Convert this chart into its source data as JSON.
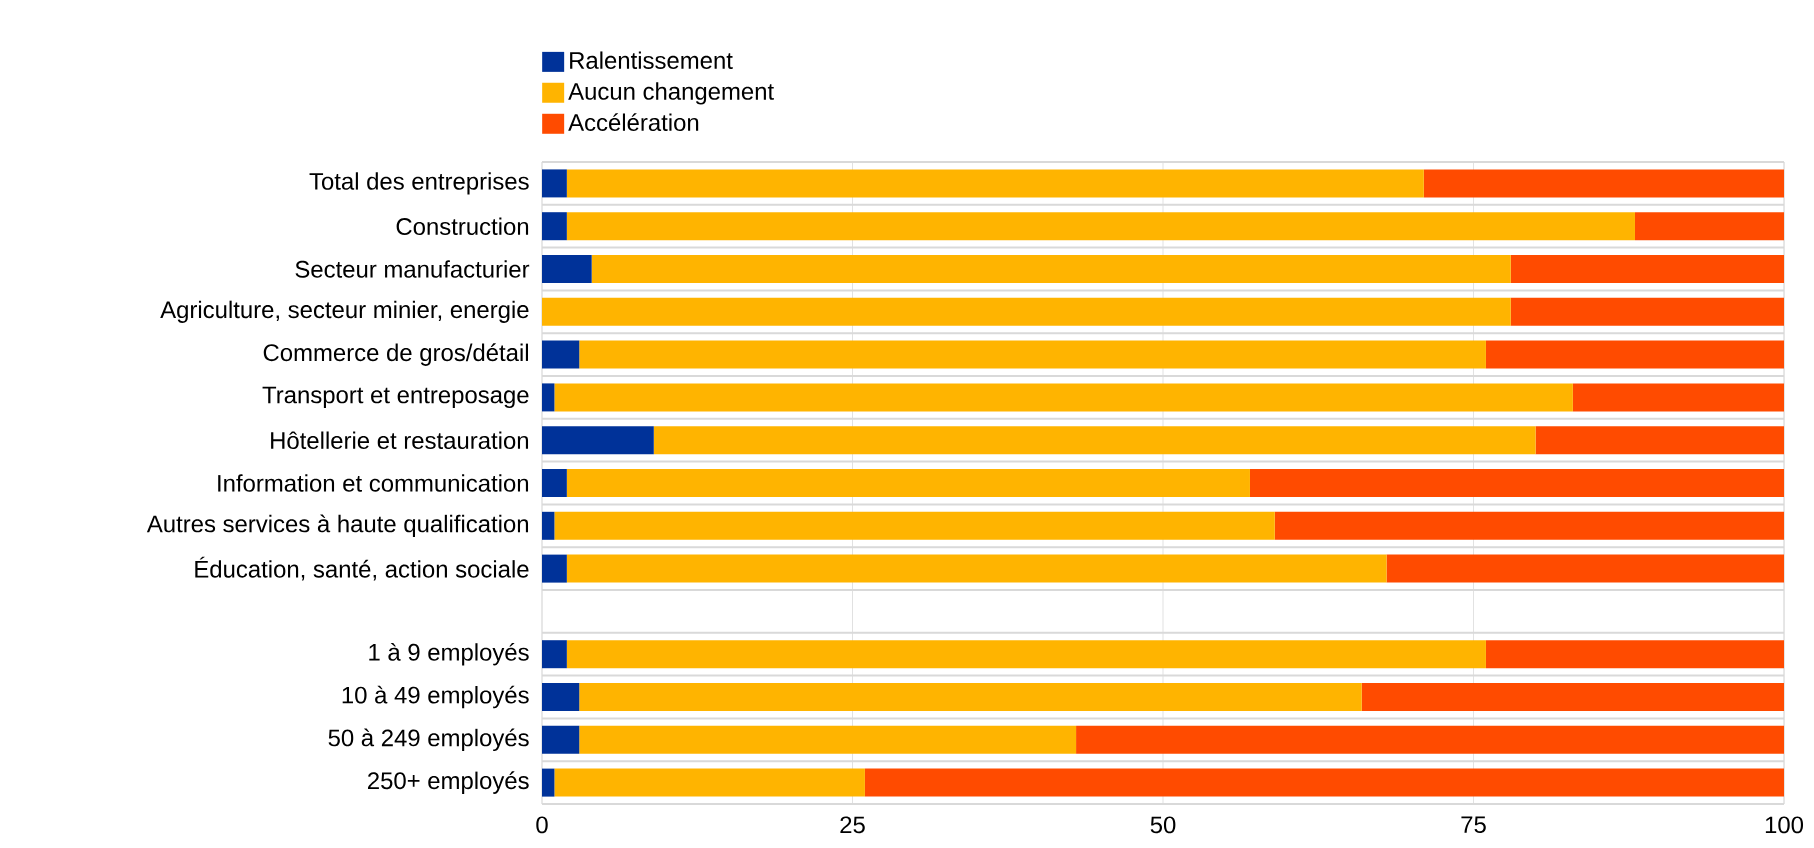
{
  "chart_data": {
    "type": "bar",
    "orientation": "horizontal",
    "stacked": true,
    "categories": [
      "Total des entreprises",
      "Construction",
      "Secteur manufacturier",
      "Agriculture, secteur minier, energie",
      "Commerce de gros/détail",
      "Transport et entreposage",
      "Hôtellerie et restauration",
      "Information et communication",
      "Autres services à haute qualification",
      "Éducation, santé, action sociale",
      null,
      "1 à 9 employés",
      "10 à 49 employés",
      "50 à 249 employés",
      "250+ employés"
    ],
    "series": [
      {
        "name": "Ralentissement",
        "color": "#003299",
        "values": [
          2,
          2,
          4,
          0,
          3,
          1,
          9,
          2,
          1,
          2,
          null,
          2,
          3,
          3,
          1
        ]
      },
      {
        "name": "Aucun changement",
        "color": "#ffb400",
        "values": [
          69,
          86,
          74,
          78,
          73,
          82,
          71,
          55,
          58,
          66,
          null,
          74,
          63,
          40,
          25
        ]
      },
      {
        "name": "Accélération",
        "color": "#ff4b00",
        "values": [
          29,
          12,
          22,
          22,
          24,
          17,
          20,
          43,
          41,
          32,
          null,
          24,
          34,
          57,
          74
        ]
      }
    ],
    "xlim": [
      0,
      100
    ],
    "xticks": [
      0,
      25,
      50,
      75,
      100
    ],
    "grid": true,
    "legend": "top left"
  }
}
